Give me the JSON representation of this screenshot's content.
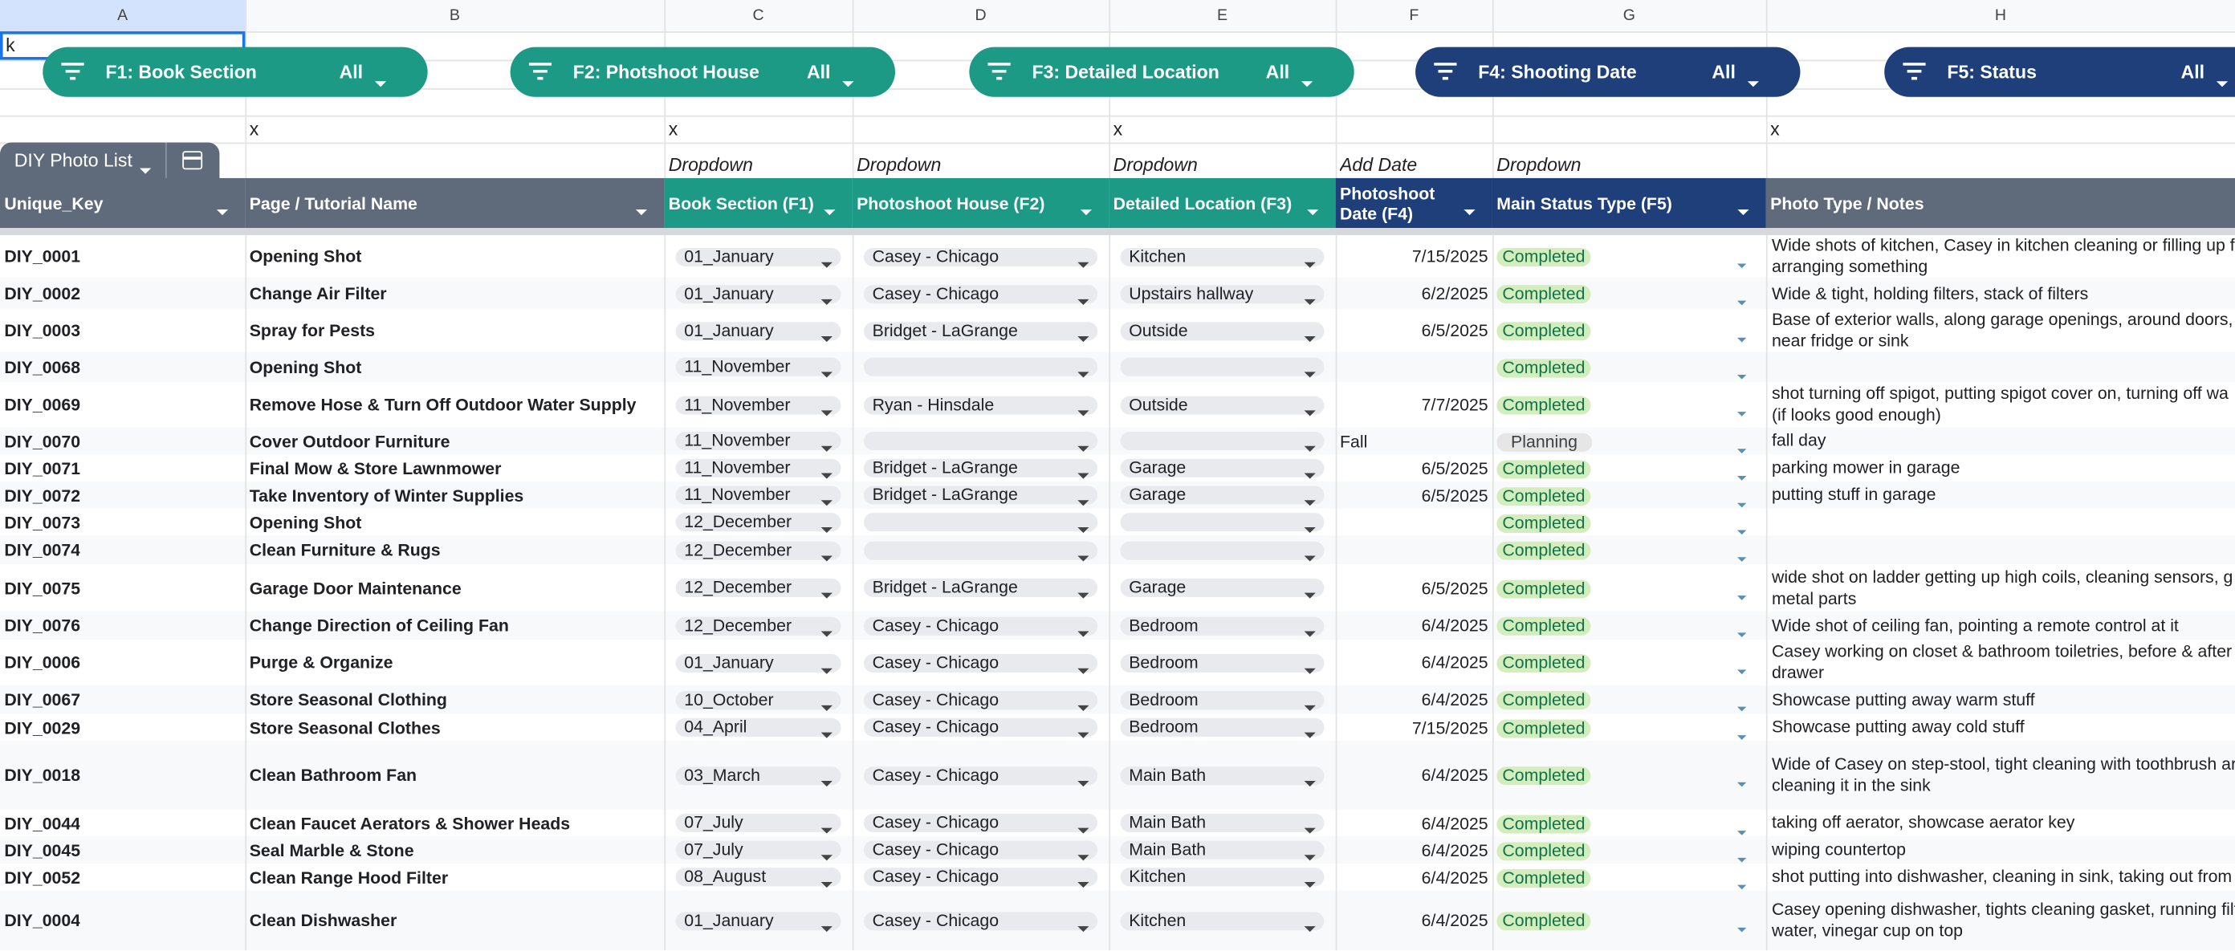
{
  "columns": [
    "A",
    "B",
    "C",
    "D",
    "E",
    "F",
    "G",
    "H"
  ],
  "cell_a1": "k",
  "filters": [
    {
      "label": "F1: Book Section",
      "value": "All"
    },
    {
      "label": "F2: Photshoot House",
      "value": "All"
    },
    {
      "label": "F3: Detailed Location",
      "value": "All"
    },
    {
      "label": "F4: Shooting Date",
      "value": "All"
    },
    {
      "label": "F5: Status",
      "value": "All"
    }
  ],
  "row3": [
    null,
    "x",
    "x",
    null,
    "x",
    null,
    null,
    "x"
  ],
  "row4": [
    null,
    null,
    "Dropdown",
    "Dropdown",
    "Dropdown",
    "Add Date",
    "Dropdown",
    null
  ],
  "sheet_tab": "DIY Photo List",
  "headers": [
    "Unique_Key",
    "Page / Tutorial Name",
    "Book Section (F1)",
    "Photoshoot House (F2)",
    "Detailed Location (F3)",
    "Photoshoot Date (F4)",
    "Main Status Type (F5)",
    "Photo Type / Notes"
  ],
  "rows": [
    [
      "DIY_0001",
      "Opening Shot",
      "01_January",
      "Casey - Chicago",
      "Kitchen",
      "7/15/2025",
      "Completed",
      [
        "Wide shots of kitchen, Casey in kitchen cleaning or filling up f",
        "arranging something"
      ]
    ],
    [
      "DIY_0002",
      "Change Air Filter",
      "01_January",
      "Casey - Chicago",
      "Upstairs hallway",
      "6/2/2025",
      "Completed",
      [
        "Wide & tight, holding filters, stack of filters"
      ]
    ],
    [
      "DIY_0003",
      "Spray for Pests",
      "01_January",
      "Bridget - LaGrange",
      "Outside",
      "6/5/2025",
      "Completed",
      [
        "Base of exterior walls, along garage openings, around doors, a",
        "near fridge or sink"
      ]
    ],
    [
      "DIY_0068",
      "Opening Shot",
      "11_November",
      null,
      null,
      null,
      "Completed",
      null
    ],
    [
      "DIY_0069",
      "Remove Hose & Turn Off Outdoor Water Supply",
      "11_November",
      "Ryan - Hinsdale",
      "Outside",
      "7/7/2025",
      "Completed",
      [
        "shot turning off spigot, putting spigot cover on, turning off wa",
        "(if looks good enough)"
      ]
    ],
    [
      "DIY_0070",
      "Cover Outdoor Furniture",
      "11_November",
      null,
      null,
      "Fall",
      "Planning",
      [
        "fall day"
      ]
    ],
    [
      "DIY_0071",
      "Final Mow & Store Lawnmower",
      "11_November",
      "Bridget - LaGrange",
      "Garage",
      "6/5/2025",
      "Completed",
      [
        "parking mower in garage"
      ]
    ],
    [
      "DIY_0072",
      "Take Inventory of Winter Supplies",
      "11_November",
      "Bridget - LaGrange",
      "Garage",
      "6/5/2025",
      "Completed",
      [
        "putting stuff in garage"
      ]
    ],
    [
      "DIY_0073",
      "Opening Shot",
      "12_December",
      null,
      null,
      null,
      "Completed",
      null
    ],
    [
      "DIY_0074",
      "Clean Furniture & Rugs",
      "12_December",
      null,
      null,
      null,
      "Completed",
      null
    ],
    [
      "DIY_0075",
      "Garage Door Maintenance",
      "12_December",
      "Bridget - LaGrange",
      "Garage",
      "6/5/2025",
      "Completed",
      [
        "wide shot on ladder getting up high coils, cleaning sensors, g",
        "metal parts"
      ]
    ],
    [
      "DIY_0076",
      "Change Direction of Ceiling Fan",
      "12_December",
      "Casey - Chicago",
      "Bedroom",
      "6/4/2025",
      "Completed",
      [
        "Wide shot of ceiling fan, pointing a remote control at it"
      ]
    ],
    [
      "DIY_0006",
      "Purge & Organize",
      "01_January",
      "Casey - Chicago",
      "Bedroom",
      "6/4/2025",
      "Completed",
      [
        "Casey working on closet & bathroom toiletries, before & after",
        "drawer"
      ]
    ],
    [
      "DIY_0067",
      "Store Seasonal Clothing",
      "10_October",
      "Casey - Chicago",
      "Bedroom",
      "6/4/2025",
      "Completed",
      [
        "Showcase putting away warm stuff"
      ]
    ],
    [
      "DIY_0029",
      "Store Seasonal Clothes",
      "04_April",
      "Casey - Chicago",
      "Bedroom",
      "7/15/2025",
      "Completed",
      [
        "Showcase putting away cold stuff"
      ]
    ],
    [
      "DIY_0018",
      "Clean Bathroom Fan",
      "03_March",
      "Casey - Chicago",
      "Main Bath",
      "6/4/2025",
      "Completed",
      [
        "Wide of Casey on step-stool, tight cleaning with toothbrush ar",
        "cleaning it in the sink"
      ]
    ],
    [
      "DIY_0044",
      "Clean Faucet Aerators & Shower Heads",
      "07_July",
      "Casey - Chicago",
      "Main Bath",
      "6/4/2025",
      "Completed",
      [
        "taking off aerator, showcase aerator key"
      ]
    ],
    [
      "DIY_0045",
      "Seal Marble & Stone",
      "07_July",
      "Casey - Chicago",
      "Main Bath",
      "6/4/2025",
      "Completed",
      [
        "wiping countertop"
      ]
    ],
    [
      "DIY_0052",
      "Clean Range Hood Filter",
      "08_August",
      "Casey - Chicago",
      "Kitchen",
      "6/4/2025",
      "Completed",
      [
        "shot putting into dishwasher, cleaning in sink, taking out from"
      ]
    ],
    [
      "DIY_0004",
      "Clean Dishwasher",
      "01_January",
      "Casey - Chicago",
      "Kitchen",
      "6/4/2025",
      "Completed",
      [
        "Casey opening dishwasher, tights cleaning gasket, running filt",
        "water, vinegar cup on top"
      ]
    ]
  ]
}
